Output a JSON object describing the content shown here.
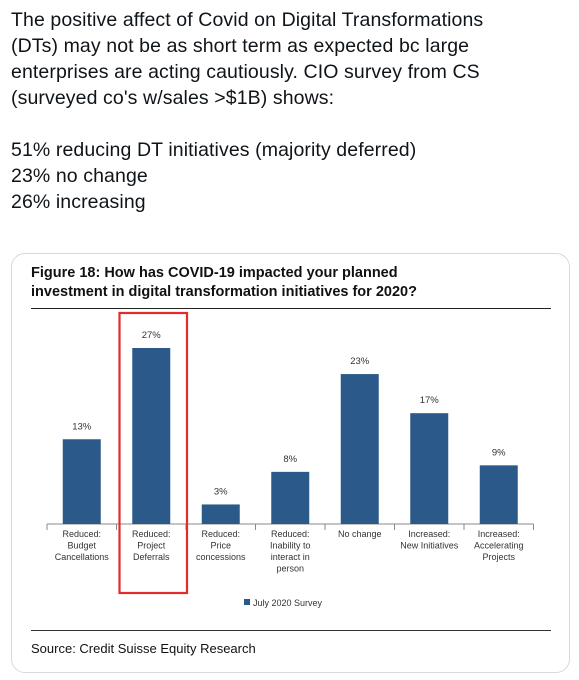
{
  "tweet": {
    "lines_1": [
      "The positive affect of Covid on Digital Transformations",
      "(DTs) may not be as short term as expected bc large",
      "enterprises are acting cautiously. CIO survey from CS",
      "(surveyed co's w/sales >$1B) shows:"
    ],
    "lines_2": [
      "51% reducing DT initiatives (majority deferred)",
      "23% no change",
      "26% increasing"
    ]
  },
  "figure": {
    "title_line1": "Figure 18: How has COVID-19 impacted your planned",
    "title_line2": "investment in digital transformation initiatives for 2020?",
    "source": "Source: Credit Suisse Equity Research"
  },
  "chart_data": {
    "type": "bar",
    "categories": [
      [
        "Reduced:",
        "Budget",
        "Cancellations"
      ],
      [
        "Reduced:",
        "Project",
        "Deferrals"
      ],
      [
        "Reduced:",
        "Price",
        "concessions"
      ],
      [
        "Reduced:",
        "Inability to",
        "interact in",
        "person"
      ],
      [
        "No change"
      ],
      [
        "Increased:",
        "New Initiatives"
      ],
      [
        "Increased:",
        "Accelerating",
        "Projects"
      ]
    ],
    "values": [
      13,
      27,
      3,
      8,
      23,
      17,
      9
    ],
    "data_labels": [
      "13%",
      "27%",
      "3%",
      "8%",
      "23%",
      "17%",
      "9%"
    ],
    "series": [
      {
        "name": "July 2020 Survey",
        "values": [
          13,
          27,
          3,
          8,
          23,
          17,
          9
        ]
      }
    ],
    "ylim": [
      0,
      27
    ],
    "bar_color": "#2b5a8a",
    "highlight_index": 1,
    "highlight_color": "#e32b2b",
    "legend_placement": "bottom-center",
    "grid": false
  }
}
